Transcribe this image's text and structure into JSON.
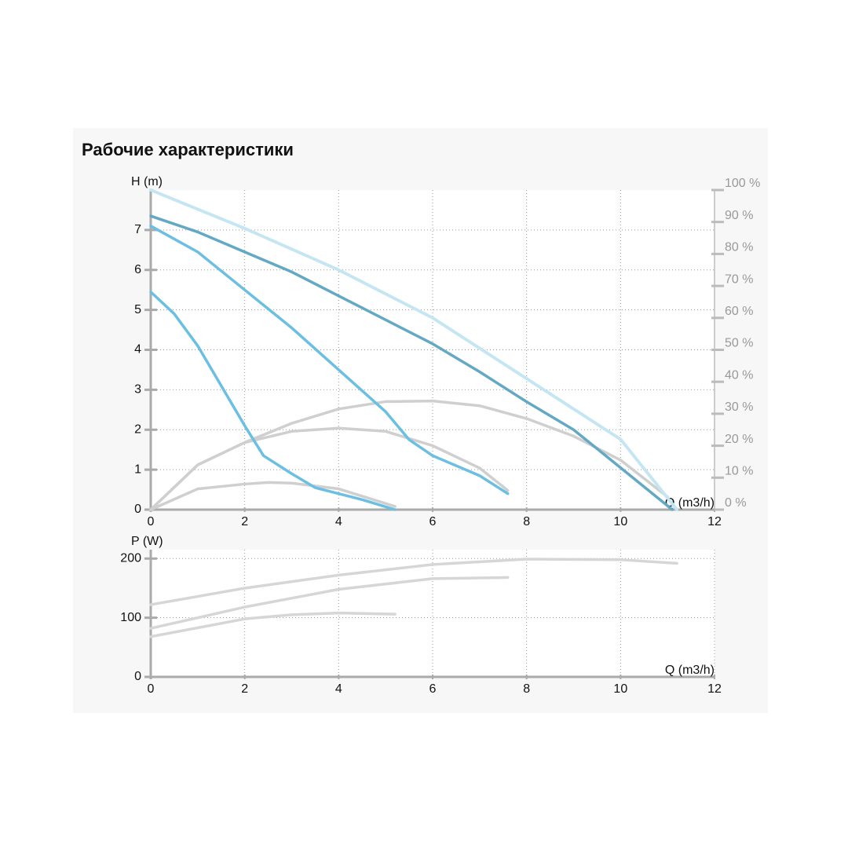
{
  "title": "Рабочие характеристики",
  "chart_data": [
    {
      "type": "line",
      "xlabel": "Q (m3/h)",
      "ylabel": "H (m)",
      "xlim": [
        0,
        12
      ],
      "xticks": [
        0,
        2,
        4,
        6,
        8,
        10,
        12
      ],
      "ylim": [
        0,
        8
      ],
      "yticks": [
        0,
        1,
        2,
        3,
        4,
        5,
        6,
        7
      ],
      "y2lim": [
        0,
        100
      ],
      "y2ticks": [
        {
          "value": 0,
          "label": "0 %"
        },
        {
          "value": 10,
          "label": "10 %"
        },
        {
          "value": 20,
          "label": "20 %"
        },
        {
          "value": 30,
          "label": "30 %"
        },
        {
          "value": 40,
          "label": "40 %"
        },
        {
          "value": 50,
          "label": "50 %"
        },
        {
          "value": 60,
          "label": "60 %"
        },
        {
          "value": 70,
          "label": "70 %"
        },
        {
          "value": 80,
          "label": "80 %"
        },
        {
          "value": 90,
          "label": "90 %"
        },
        {
          "value": 100,
          "label": "100 %"
        }
      ],
      "grid": true,
      "series": [
        {
          "color": "#cfcfcf",
          "axis": "y2",
          "x": [
            0,
            1,
            2,
            3,
            4,
            5,
            6,
            7,
            8,
            9,
            10,
            11
          ],
          "values": [
            0,
            14,
            21,
            27,
            31.5,
            33.8,
            34,
            32.5,
            28.5,
            23,
            15.5,
            4
          ]
        },
        {
          "color": "#cfcfcf",
          "axis": "y2",
          "x": [
            0,
            1,
            2,
            3,
            4,
            5,
            6,
            7,
            7.6
          ],
          "values": [
            0,
            14,
            21,
            24.5,
            25.5,
            24.5,
            20,
            13,
            6
          ]
        },
        {
          "color": "#cfcfcf",
          "axis": "y2",
          "x": [
            0,
            1,
            2,
            2.5,
            3,
            4,
            5.2
          ],
          "values": [
            0,
            6.5,
            8,
            8.5,
            8.3,
            6.5,
            1
          ]
        },
        {
          "color": "#c4e6f3",
          "axis": "y2",
          "dashed": true,
          "x": [
            0,
            2,
            4,
            6,
            8,
            10,
            11.2
          ],
          "values": [
            100,
            88,
            75,
            60,
            41,
            22,
            0
          ]
        },
        {
          "color": "#63a9c6",
          "x": [
            0,
            1,
            2,
            3,
            4,
            5,
            6,
            7,
            8,
            9,
            10,
            11.1
          ],
          "values": [
            7.35,
            6.95,
            6.45,
            5.95,
            5.35,
            4.75,
            4.15,
            3.45,
            2.7,
            2.0,
            1.05,
            0
          ]
        },
        {
          "color": "#6bbfe2",
          "x": [
            0,
            1,
            2,
            3,
            4,
            5,
            5.5,
            6,
            7,
            7.6
          ],
          "values": [
            7.1,
            6.45,
            5.5,
            4.55,
            3.5,
            2.45,
            1.75,
            1.35,
            0.85,
            0.4
          ]
        },
        {
          "color": "#6bbfe2",
          "x": [
            0,
            0.5,
            1,
            1.5,
            2,
            2.4,
            3,
            3.5,
            4,
            4.5,
            5.2
          ],
          "values": [
            5.45,
            4.9,
            4.1,
            3.1,
            2.1,
            1.35,
            0.9,
            0.55,
            0.4,
            0.25,
            0
          ]
        }
      ]
    },
    {
      "type": "line",
      "xlabel": "Q (m3/h)",
      "ylabel": "P (W)",
      "xlim": [
        0,
        12
      ],
      "xticks": [
        0,
        2,
        4,
        6,
        8,
        10,
        12
      ],
      "ylim": [
        0,
        215
      ],
      "yticks": [
        0,
        100,
        200
      ],
      "grid": true,
      "series": [
        {
          "color": "#d6d6d6",
          "x": [
            0,
            2,
            4,
            6,
            8,
            10,
            11.2
          ],
          "values": [
            122,
            150,
            172,
            190,
            199,
            198,
            192
          ]
        },
        {
          "color": "#d6d6d6",
          "x": [
            0,
            2,
            4,
            6,
            7.6
          ],
          "values": [
            82,
            118,
            148,
            166,
            168
          ]
        },
        {
          "color": "#d6d6d6",
          "x": [
            0,
            2,
            3,
            4,
            5.2
          ],
          "values": [
            68,
            98,
            105,
            108,
            106
          ]
        }
      ]
    }
  ]
}
